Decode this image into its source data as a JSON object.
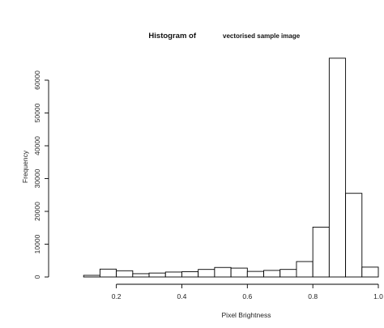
{
  "chart_data": {
    "type": "bar",
    "title_main": "Histogram of",
    "title_sub": "vectorised sample image",
    "xlabel": "Pixel Brightness",
    "ylabel": "Frequency",
    "xlim": [
      0.05,
      1.0
    ],
    "ylim": [
      0,
      68000
    ],
    "bin_width": 0.05,
    "bins": [
      {
        "start": 0.1,
        "end": 0.15,
        "value": 500
      },
      {
        "start": 0.15,
        "end": 0.2,
        "value": 2400
      },
      {
        "start": 0.2,
        "end": 0.25,
        "value": 1900
      },
      {
        "start": 0.25,
        "end": 0.3,
        "value": 1000
      },
      {
        "start": 0.3,
        "end": 0.35,
        "value": 1200
      },
      {
        "start": 0.35,
        "end": 0.4,
        "value": 1500
      },
      {
        "start": 0.4,
        "end": 0.45,
        "value": 1600
      },
      {
        "start": 0.45,
        "end": 0.5,
        "value": 2300
      },
      {
        "start": 0.5,
        "end": 0.55,
        "value": 2900
      },
      {
        "start": 0.55,
        "end": 0.6,
        "value": 2700
      },
      {
        "start": 0.6,
        "end": 0.65,
        "value": 1700
      },
      {
        "start": 0.65,
        "end": 0.7,
        "value": 2000
      },
      {
        "start": 0.7,
        "end": 0.75,
        "value": 2300
      },
      {
        "start": 0.75,
        "end": 0.8,
        "value": 4700
      },
      {
        "start": 0.8,
        "end": 0.85,
        "value": 15200
      },
      {
        "start": 0.85,
        "end": 0.9,
        "value": 66700
      },
      {
        "start": 0.9,
        "end": 0.95,
        "value": 25500
      },
      {
        "start": 0.95,
        "end": 1.0,
        "value": 3000
      }
    ],
    "x_ticks": [
      0.2,
      0.4,
      0.6,
      0.8,
      1.0
    ],
    "x_tick_labels": [
      "0.2",
      "0.4",
      "0.6",
      "0.8",
      "1.0"
    ],
    "y_ticks": [
      0,
      10000,
      20000,
      30000,
      40000,
      50000,
      60000
    ],
    "y_tick_labels": [
      "0",
      "10000",
      "20000",
      "30000",
      "40000",
      "50000",
      "60000"
    ],
    "grid": false,
    "legend": "none"
  }
}
